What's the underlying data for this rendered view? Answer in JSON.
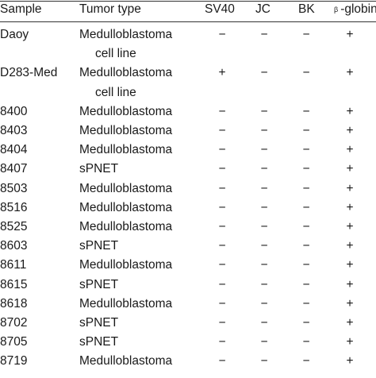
{
  "headers": {
    "sample": "Sample",
    "tumor_type": "Tumor type",
    "sv40": "SV40",
    "jc": "JC",
    "bk": "BK",
    "beta_symbol": "β",
    "beta_globin": "-globin"
  },
  "rows": [
    {
      "sample": "Daoy",
      "tumor": "Medulloblastoma",
      "tumor_cont": "cell line",
      "sv40": "−",
      "jc": "−",
      "bk": "−",
      "beta": "+"
    },
    {
      "sample": "D283-Med",
      "tumor": "Medulloblastoma",
      "tumor_cont": "cell line",
      "sv40": "+",
      "jc": "−",
      "bk": "−",
      "beta": "+"
    },
    {
      "sample": "8400",
      "tumor": "Medulloblastoma",
      "tumor_cont": "",
      "sv40": "−",
      "jc": "−",
      "bk": "−",
      "beta": "+"
    },
    {
      "sample": "8403",
      "tumor": "Medulloblastoma",
      "tumor_cont": "",
      "sv40": "−",
      "jc": "−",
      "bk": "−",
      "beta": "+"
    },
    {
      "sample": "8404",
      "tumor": "Medulloblastoma",
      "tumor_cont": "",
      "sv40": "−",
      "jc": "−",
      "bk": "−",
      "beta": "+"
    },
    {
      "sample": "8407",
      "tumor": "sPNET",
      "tumor_cont": "",
      "sv40": "−",
      "jc": "−",
      "bk": "−",
      "beta": "+"
    },
    {
      "sample": "8503",
      "tumor": "Medulloblastoma",
      "tumor_cont": "",
      "sv40": "−",
      "jc": "−",
      "bk": "−",
      "beta": "+"
    },
    {
      "sample": "8516",
      "tumor": "Medulloblastoma",
      "tumor_cont": "",
      "sv40": "−",
      "jc": "−",
      "bk": "−",
      "beta": "+"
    },
    {
      "sample": "8525",
      "tumor": "Medulloblastoma",
      "tumor_cont": "",
      "sv40": "−",
      "jc": "−",
      "bk": "−",
      "beta": "+"
    },
    {
      "sample": "8603",
      "tumor": "sPNET",
      "tumor_cont": "",
      "sv40": "−",
      "jc": "−",
      "bk": "−",
      "beta": "+"
    },
    {
      "sample": "8611",
      "tumor": "Medulloblastoma",
      "tumor_cont": "",
      "sv40": "−",
      "jc": "−",
      "bk": "−",
      "beta": "+"
    },
    {
      "sample": "8615",
      "tumor": "sPNET",
      "tumor_cont": "",
      "sv40": "−",
      "jc": "−",
      "bk": "−",
      "beta": "+"
    },
    {
      "sample": "8618",
      "tumor": "Medulloblastoma",
      "tumor_cont": "",
      "sv40": "−",
      "jc": "−",
      "bk": "−",
      "beta": "+"
    },
    {
      "sample": "8702",
      "tumor": "sPNET",
      "tumor_cont": "",
      "sv40": "−",
      "jc": "−",
      "bk": "−",
      "beta": "+"
    },
    {
      "sample": "8705",
      "tumor": "sPNET",
      "tumor_cont": "",
      "sv40": "−",
      "jc": "−",
      "bk": "−",
      "beta": "+"
    },
    {
      "sample": "8719",
      "tumor": "Medulloblastoma",
      "tumor_cont": "",
      "sv40": "−",
      "jc": "−",
      "bk": "−",
      "beta": "+"
    }
  ]
}
